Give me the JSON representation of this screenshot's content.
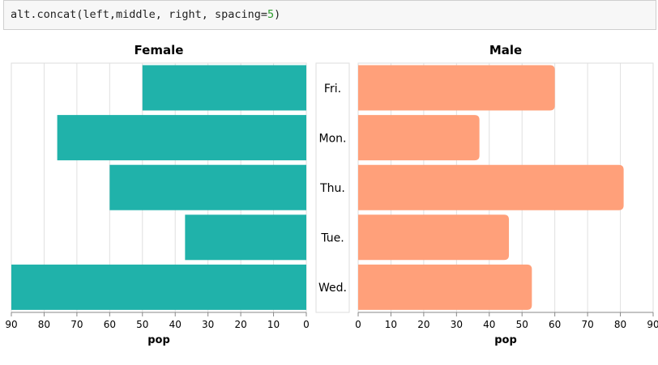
{
  "code": {
    "prefix": "alt.concat(left,middle, right, spacing=",
    "number": "5",
    "suffix": ")"
  },
  "chart_data": [
    {
      "type": "bar",
      "title": "Female",
      "xlabel": "pop",
      "orientation": "horizontal",
      "x_reversed": true,
      "xlim": [
        0,
        90
      ],
      "ticks": [
        0,
        10,
        20,
        30,
        40,
        50,
        60,
        70,
        80,
        90
      ],
      "categories": [
        "Fri.",
        "Mon.",
        "Thu.",
        "Tue.",
        "Wed."
      ],
      "values": [
        50,
        76,
        60,
        37,
        90
      ],
      "color": "#20b2aa",
      "grid": true
    },
    {
      "type": "table",
      "categories": [
        "Fri.",
        "Mon.",
        "Thu.",
        "Tue.",
        "Wed."
      ]
    },
    {
      "type": "bar",
      "title": "Male",
      "xlabel": "pop",
      "orientation": "horizontal",
      "xlim": [
        0,
        90
      ],
      "ticks": [
        0,
        10,
        20,
        30,
        40,
        50,
        60,
        70,
        80,
        90
      ],
      "categories": [
        "Fri.",
        "Mon.",
        "Thu.",
        "Tue.",
        "Wed."
      ],
      "values": [
        60,
        37,
        81,
        46,
        53
      ],
      "color": "#ffa07a",
      "grid": true
    }
  ]
}
